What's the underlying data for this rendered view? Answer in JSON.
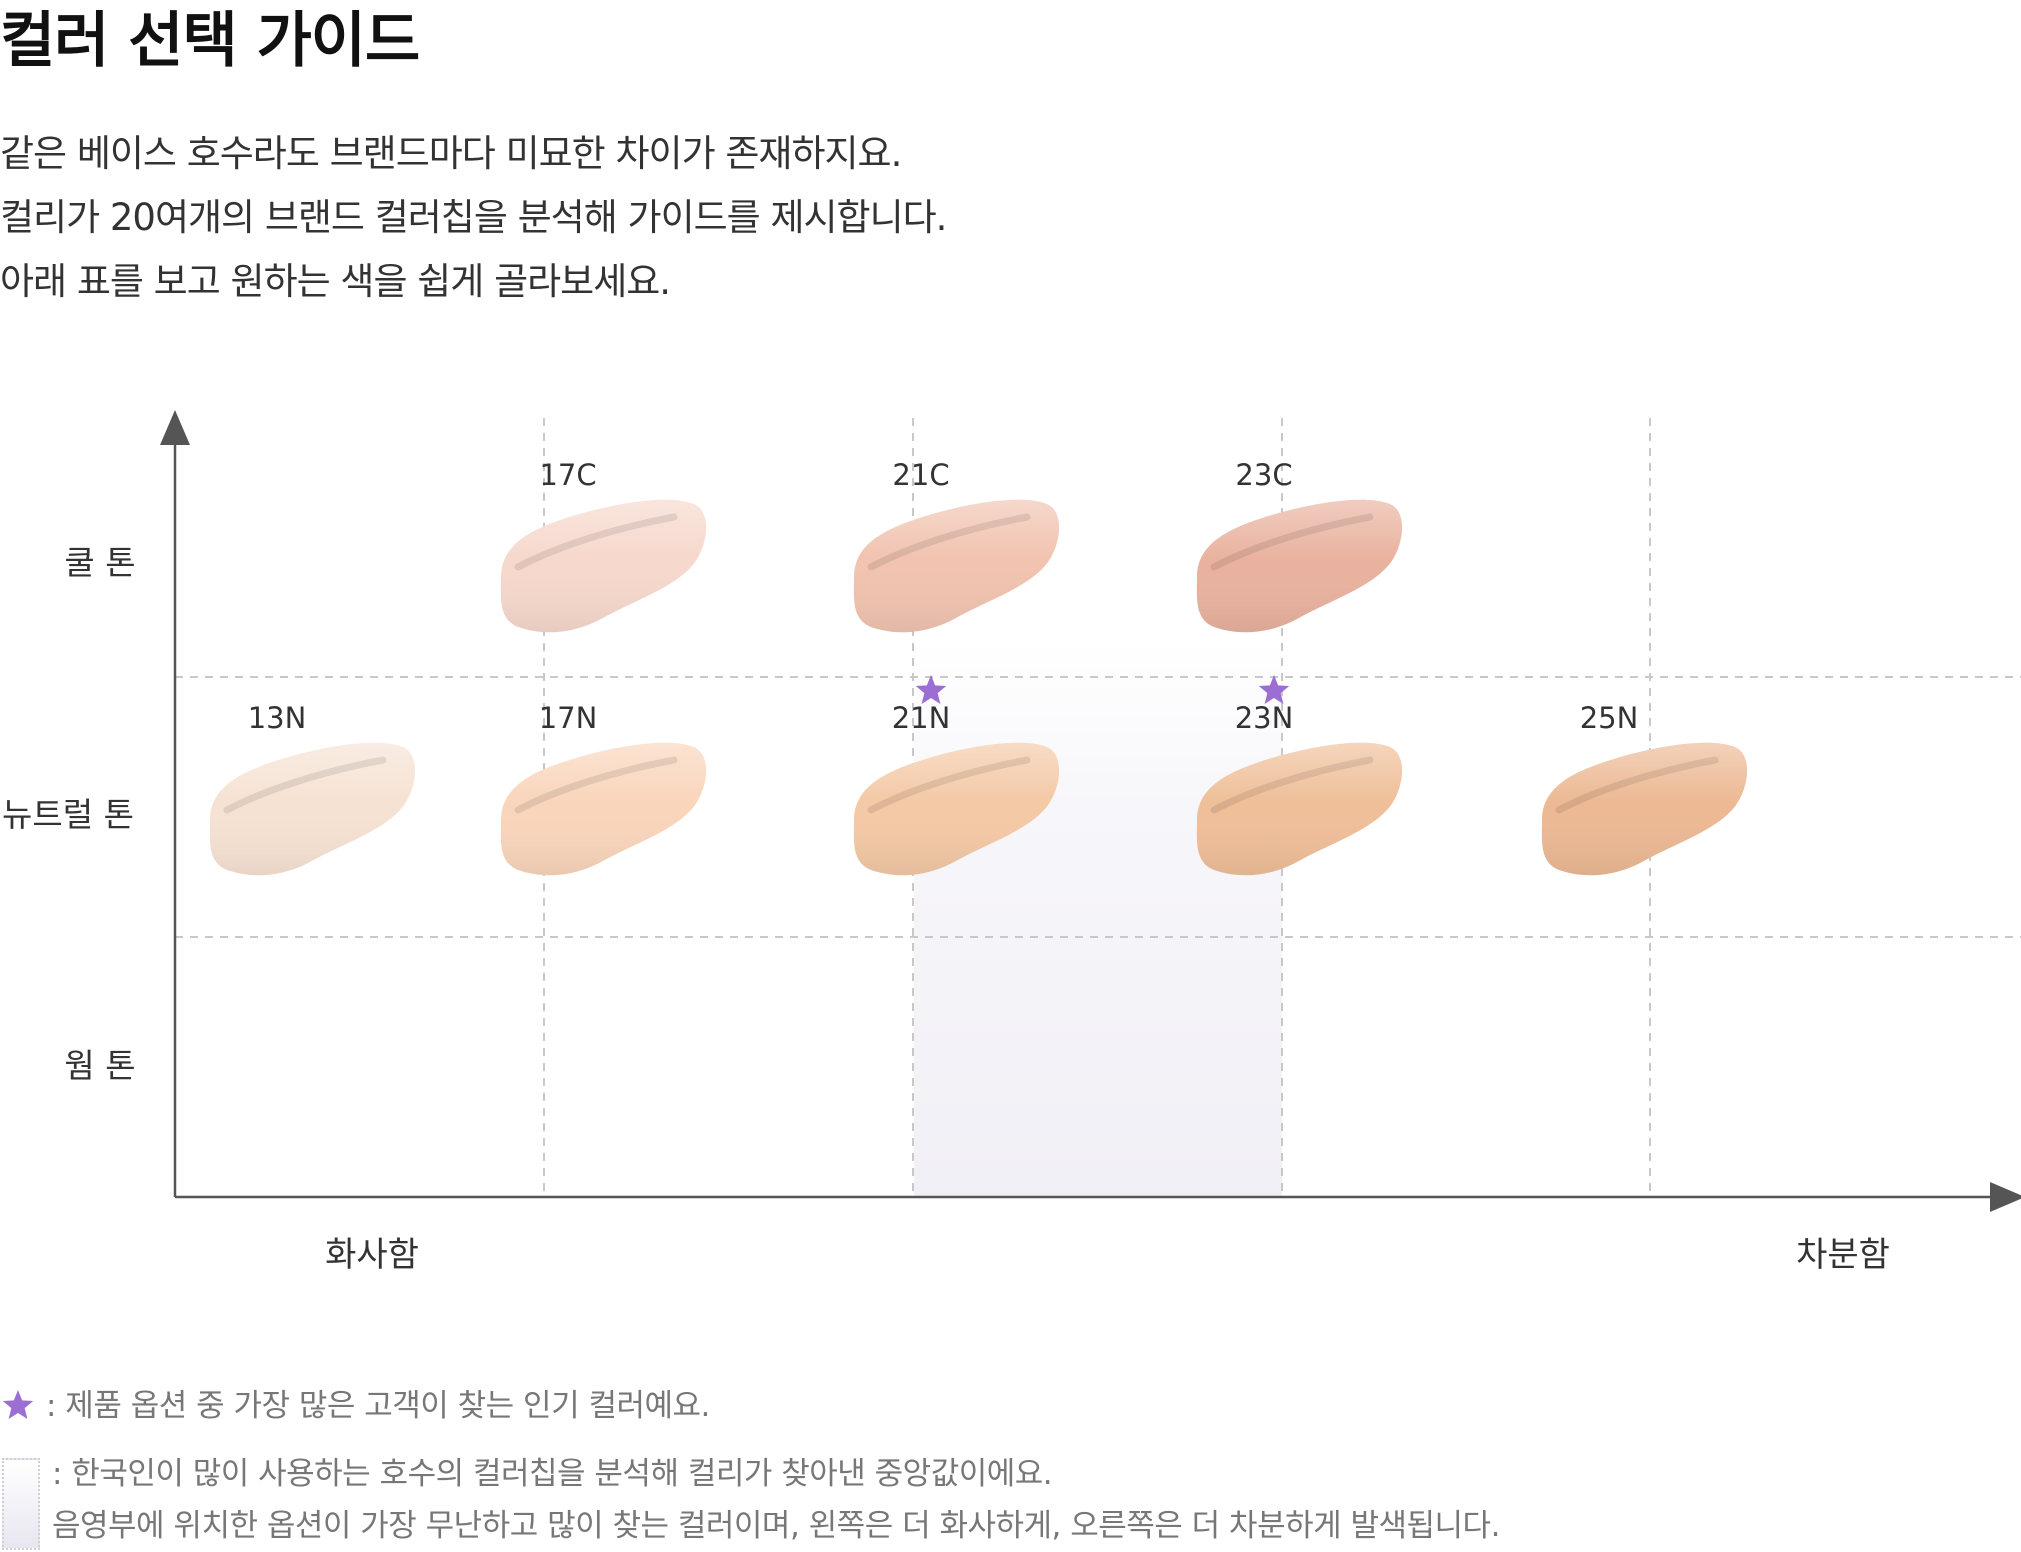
{
  "title": "컬러 선택 가이드",
  "description": [
    "같은 베이스 호수라도 브랜드마다 미묘한 차이가 존재하지요.",
    "컬리가 20여개의 브랜드 컬러칩을 분석해 가이드를 제시합니다.",
    "아래 표를 보고 원하는 색을 쉽게 골라보세요."
  ],
  "chart": {
    "rows": [
      "쿨 톤",
      "뉴트럴 톤",
      "웜 톤"
    ],
    "x_left_label": "화사함",
    "x_right_label": "차분함",
    "swatches": [
      {
        "label": "17C",
        "row": 0,
        "col": 1,
        "color": "#f6d8cc",
        "highlight": false
      },
      {
        "label": "21C",
        "row": 0,
        "col": 2,
        "color": "#f1c3b0",
        "highlight": false
      },
      {
        "label": "23C",
        "row": 0,
        "col": 3,
        "color": "#e9b29f",
        "highlight": false
      },
      {
        "label": "13N",
        "row": 1,
        "col": 0,
        "color": "#f6e2d3",
        "highlight": false
      },
      {
        "label": "17N",
        "row": 1,
        "col": 1,
        "color": "#f9d5bb",
        "highlight": false
      },
      {
        "label": "21N",
        "row": 1,
        "col": 2,
        "color": "#f4c9a6",
        "highlight": true
      },
      {
        "label": "23N",
        "row": 1,
        "col": 3,
        "color": "#efbf99",
        "highlight": true
      },
      {
        "label": "25N",
        "row": 1,
        "col": 4,
        "color": "#ecb994",
        "highlight": false
      }
    ],
    "shaded_cols": [
      2
    ],
    "star_color": "#9b6fd1",
    "shade_color": "#f3f2f7"
  },
  "legend": {
    "star_text": ": 제품 옵션 중 가장 많은 고객이 찾는 인기 컬러예요.",
    "shade_text_1": ": 한국인이 많이 사용하는 호수의 컬러칩을 분석해 컬리가 찾아낸 중앙값이에요.",
    "shade_text_2": "음영부에 위치한 옵션이 가장 무난하고 많이 찾는 컬러이며, 왼쪽은 더 화사하게, 오른쪽은 더 차분하게 발색됩니다."
  }
}
